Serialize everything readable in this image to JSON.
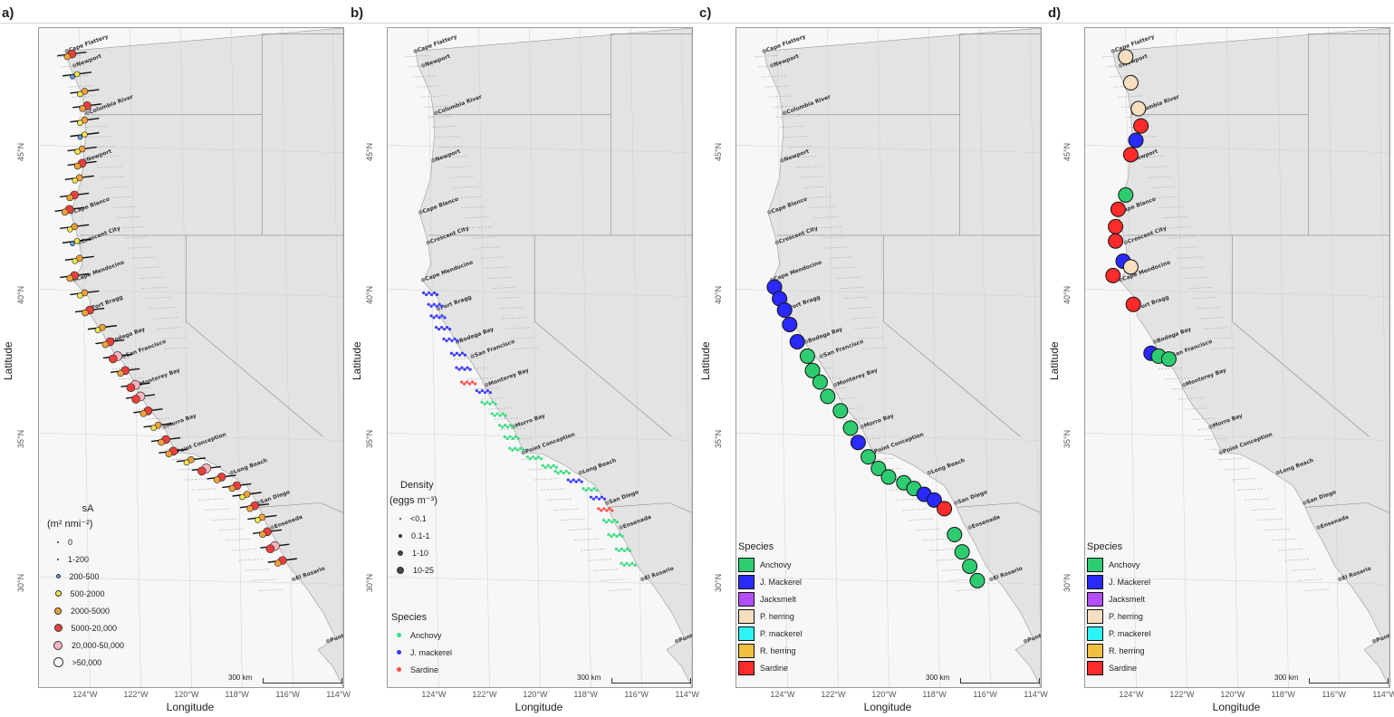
{
  "panels": [
    {
      "label": "a)",
      "xlabel": "Longitude",
      "ylabel": "Latitude"
    },
    {
      "label": "b)",
      "xlabel": "Longitude",
      "ylabel": "Latitude"
    },
    {
      "label": "c)",
      "xlabel": "Longitude",
      "ylabel": "Latitude"
    },
    {
      "label": "d)",
      "xlabel": "Longitude",
      "ylabel": "Latitude"
    }
  ],
  "axes": {
    "lat_ticks": [
      "30°N",
      "35°N",
      "40°N",
      "45°N"
    ],
    "lon_ticks": [
      "124°W",
      "122°W",
      "120°W",
      "118°W",
      "116°W",
      "114°W"
    ]
  },
  "scalebar": "300 km",
  "places": [
    "Cape Flattery",
    "Newport",
    "Columbia River",
    "Newport",
    "Cape Blanco",
    "Crescent City",
    "Cape Mendocino",
    "Fort Bragg",
    "Bodega Bay",
    "San Francisco",
    "Monterey Bay",
    "Morro Bay",
    "Point Conception",
    "Long Beach",
    "San Diego",
    "Ensenada",
    "El Rosario",
    "Punta Eugenia"
  ],
  "legend_a": {
    "title_line1": "sA",
    "title_line2": "(m² nmi⁻²)",
    "items": [
      "0",
      "1-200",
      "200-500",
      "500-2000",
      "2000-5000",
      "5000-20,000",
      "20,000-50,000",
      ">50,000"
    ],
    "colors": [
      "#000000",
      "#000000",
      "#5a9be0",
      "#f2e64a",
      "#f2a13a",
      "#e8413c",
      "#f7b6bf",
      "#ffffff"
    ]
  },
  "legend_b_density": {
    "title_line1": "Density",
    "title_line2": "(eggs m⁻³)",
    "items": [
      "<0.1",
      "0.1-1",
      "1-10",
      "10-25"
    ]
  },
  "legend_b_species": {
    "title": "Species",
    "items": [
      "Anchovy",
      "J. mackerel",
      "Sardine"
    ],
    "colors": [
      "#3ddc84",
      "#3b3bff",
      "#ff4a4a"
    ]
  },
  "legend_species": {
    "title": "Species",
    "items": [
      "Anchovy",
      "J. Mackerel",
      "Jacksmelt",
      "P. herring",
      "P. mackerel",
      "R. herring",
      "Sardine"
    ],
    "colors": [
      "#2ecc71",
      "#2a2aff",
      "#b34dff",
      "#f5dfc0",
      "#2ef5f5",
      "#f0c040",
      "#ff2a2a"
    ]
  },
  "map_data": {
    "coastline_latlon": [
      [
        48.4,
        -124.7
      ],
      [
        47.9,
        -124.6
      ],
      [
        47.3,
        -124.3
      ],
      [
        46.9,
        -124.1
      ],
      [
        46.3,
        -124.0
      ],
      [
        45.5,
        -123.95
      ],
      [
        44.6,
        -124.05
      ],
      [
        44.0,
        -124.1
      ],
      [
        43.3,
        -124.35
      ],
      [
        42.8,
        -124.55
      ],
      [
        42.2,
        -124.35
      ],
      [
        41.7,
        -124.2
      ],
      [
        41.0,
        -124.1
      ],
      [
        40.4,
        -124.4
      ],
      [
        39.8,
        -123.8
      ],
      [
        39.2,
        -123.75
      ],
      [
        38.6,
        -123.3
      ],
      [
        38.0,
        -122.9
      ],
      [
        37.6,
        -122.5
      ],
      [
        37.0,
        -122.1
      ],
      [
        36.6,
        -121.9
      ],
      [
        36.0,
        -121.5
      ],
      [
        35.4,
        -120.9
      ],
      [
        34.8,
        -120.6
      ],
      [
        34.45,
        -120.4
      ],
      [
        34.4,
        -119.7
      ],
      [
        34.0,
        -118.8
      ],
      [
        33.7,
        -118.3
      ],
      [
        33.3,
        -117.6
      ],
      [
        32.7,
        -117.2
      ],
      [
        32.0,
        -116.85
      ],
      [
        31.3,
        -116.4
      ],
      [
        30.5,
        -115.95
      ],
      [
        29.8,
        -115.3
      ],
      [
        28.9,
        -114.6
      ],
      [
        28.0,
        -114.1
      ],
      [
        27.6,
        -114.8
      ],
      [
        27.0,
        -114.2
      ]
    ],
    "acoustic_backscatter_latlon": [
      [
        48.3,
        -124.5,
        5
      ],
      [
        47.6,
        -124.3,
        3
      ],
      [
        47.0,
        -124.0,
        4
      ],
      [
        46.5,
        -123.9,
        5
      ],
      [
        46.0,
        -124.0,
        4
      ],
      [
        45.5,
        -124.0,
        3
      ],
      [
        45.0,
        -124.1,
        4
      ],
      [
        44.5,
        -124.1,
        5
      ],
      [
        44.0,
        -124.2,
        4
      ],
      [
        43.4,
        -124.4,
        5
      ],
      [
        42.9,
        -124.6,
        5
      ],
      [
        42.3,
        -124.4,
        4
      ],
      [
        41.8,
        -124.3,
        3
      ],
      [
        41.2,
        -124.2,
        4
      ],
      [
        40.6,
        -124.4,
        5
      ],
      [
        40.0,
        -124.0,
        4
      ],
      [
        39.4,
        -123.8,
        5
      ],
      [
        38.8,
        -123.3,
        4
      ],
      [
        38.3,
        -123.0,
        5
      ],
      [
        37.8,
        -122.7,
        6
      ],
      [
        37.3,
        -122.4,
        5
      ],
      [
        36.8,
        -122.0,
        6
      ],
      [
        36.4,
        -121.8,
        6
      ],
      [
        35.9,
        -121.5,
        5
      ],
      [
        35.4,
        -121.1,
        4
      ],
      [
        34.9,
        -120.8,
        5
      ],
      [
        34.5,
        -120.5,
        5
      ],
      [
        34.2,
        -119.8,
        4
      ],
      [
        33.9,
        -119.2,
        6
      ],
      [
        33.6,
        -118.6,
        5
      ],
      [
        33.3,
        -118.0,
        5
      ],
      [
        33.0,
        -117.6,
        4
      ],
      [
        32.6,
        -117.3,
        5
      ],
      [
        32.2,
        -117.0,
        4
      ],
      [
        31.7,
        -116.8,
        5
      ],
      [
        31.2,
        -116.5,
        6
      ],
      [
        30.7,
        -116.2,
        5
      ]
    ],
    "egg_samples_latlon": [
      [
        40.0,
        -124.1,
        1
      ],
      [
        39.6,
        -123.9,
        1
      ],
      [
        39.2,
        -123.8,
        1
      ],
      [
        38.8,
        -123.6,
        1
      ],
      [
        38.4,
        -123.3,
        1
      ],
      [
        37.9,
        -123.0,
        1
      ],
      [
        37.4,
        -122.8,
        1
      ],
      [
        36.9,
        -122.6,
        2
      ],
      [
        36.6,
        -122.0,
        1
      ],
      [
        36.2,
        -121.8,
        0
      ],
      [
        35.8,
        -121.4,
        0
      ],
      [
        35.4,
        -121.1,
        0
      ],
      [
        35.0,
        -120.9,
        0
      ],
      [
        34.6,
        -120.7,
        0
      ],
      [
        34.3,
        -120.0,
        0
      ],
      [
        34.0,
        -119.4,
        0
      ],
      [
        33.8,
        -118.9,
        0
      ],
      [
        33.5,
        -118.4,
        1
      ],
      [
        33.2,
        -117.8,
        0
      ],
      [
        32.9,
        -117.5,
        1
      ],
      [
        32.5,
        -117.2,
        2
      ],
      [
        32.1,
        -117.0,
        0
      ],
      [
        31.6,
        -116.8,
        0
      ],
      [
        31.1,
        -116.5,
        0
      ],
      [
        30.6,
        -116.3,
        0
      ]
    ],
    "trawl_catch_c_latlon": [
      [
        40.2,
        -124.3,
        1
      ],
      [
        39.8,
        -124.1,
        1
      ],
      [
        39.4,
        -123.9,
        1
      ],
      [
        38.9,
        -123.7,
        1
      ],
      [
        38.3,
        -123.4,
        1
      ],
      [
        37.8,
        -123.0,
        0
      ],
      [
        37.3,
        -122.8,
        0
      ],
      [
        36.9,
        -122.5,
        0
      ],
      [
        36.4,
        -122.2,
        0
      ],
      [
        35.9,
        -121.7,
        0
      ],
      [
        35.3,
        -121.3,
        0
      ],
      [
        34.8,
        -121.0,
        1
      ],
      [
        34.3,
        -120.6,
        0
      ],
      [
        33.9,
        -120.2,
        0
      ],
      [
        33.6,
        -119.8,
        0
      ],
      [
        33.4,
        -119.2,
        0
      ],
      [
        33.2,
        -118.8,
        0
      ],
      [
        33.0,
        -118.4,
        1
      ],
      [
        32.8,
        -118.0,
        1
      ],
      [
        32.5,
        -117.6,
        6
      ],
      [
        31.6,
        -117.2,
        0
      ],
      [
        31.0,
        -116.9,
        0
      ],
      [
        30.5,
        -116.6,
        0
      ],
      [
        30.0,
        -116.3,
        0
      ]
    ],
    "trawl_catch_d_latlon": [
      [
        48.2,
        -124.2,
        3
      ],
      [
        47.3,
        -124.0,
        3
      ],
      [
        46.4,
        -123.7,
        3
      ],
      [
        45.8,
        -123.6,
        6
      ],
      [
        45.3,
        -123.8,
        1
      ],
      [
        44.8,
        -124.0,
        6
      ],
      [
        43.4,
        -124.2,
        0
      ],
      [
        42.9,
        -124.5,
        6
      ],
      [
        42.3,
        -124.6,
        6
      ],
      [
        41.8,
        -124.6,
        6
      ],
      [
        41.1,
        -124.3,
        1
      ],
      [
        40.9,
        -124.0,
        3
      ],
      [
        40.6,
        -124.7,
        6
      ],
      [
        39.6,
        -123.9,
        6
      ],
      [
        37.9,
        -123.2,
        1
      ],
      [
        37.8,
        -122.9,
        0
      ],
      [
        37.7,
        -122.5,
        0
      ]
    ]
  }
}
